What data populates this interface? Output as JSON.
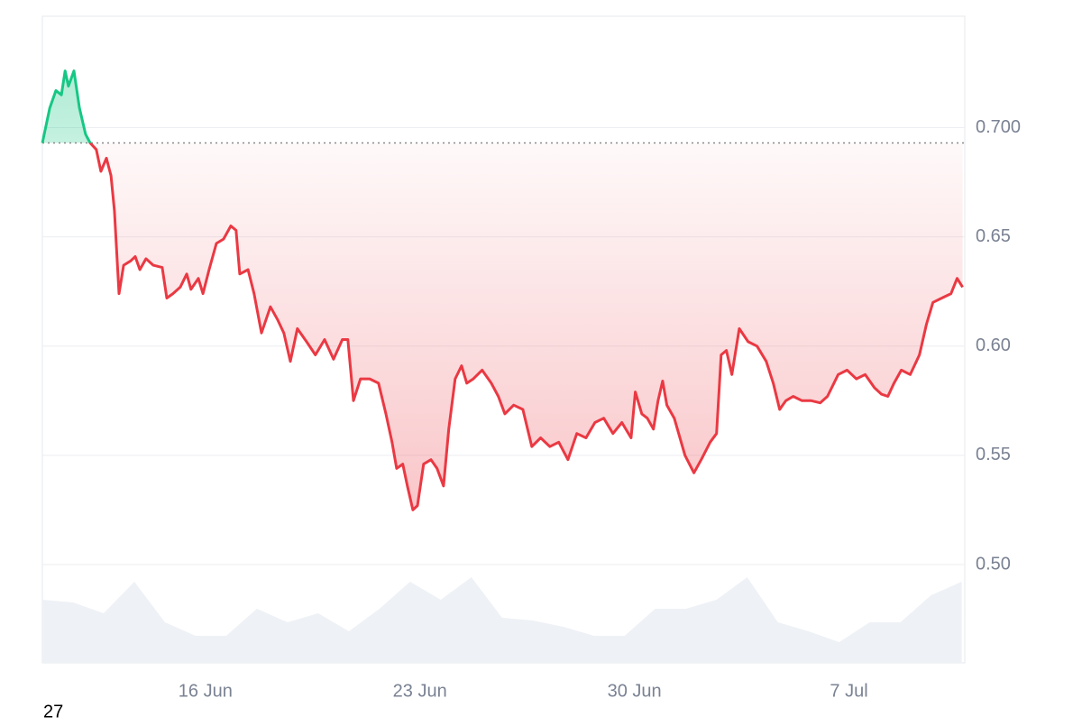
{
  "chart_data": {
    "type": "baseline-line",
    "x": [
      0,
      0.24,
      0.44,
      0.62,
      0.74,
      0.85,
      1.03,
      1.21,
      1.41,
      1.56,
      1.76,
      1.91,
      2.09,
      2.24,
      2.35,
      2.5,
      2.65,
      2.88,
      3.03,
      3.18,
      3.38,
      3.62,
      3.91,
      4.06,
      4.26,
      4.5,
      4.71,
      4.85,
      5.09,
      5.24,
      5.44,
      5.68,
      5.91,
      6.15,
      6.32,
      6.44,
      6.71,
      6.91,
      7.15,
      7.44,
      7.68,
      7.88,
      8.09,
      8.32,
      8.62,
      8.91,
      9.21,
      9.5,
      9.79,
      9.97,
      10.15,
      10.38,
      10.68,
      10.97,
      11.21,
      11.41,
      11.56,
      11.76,
      11.91,
      12.09,
      12.24,
      12.44,
      12.68,
      12.88,
      13.09,
      13.26,
      13.47,
      13.68,
      13.85,
      14.06,
      14.35,
      14.65,
      14.88,
      15.09,
      15.38,
      15.68,
      15.97,
      16.26,
      16.56,
      16.85,
      17.15,
      17.44,
      17.74,
      18.03,
      18.32,
      18.62,
      18.91,
      19.21,
      19.35,
      19.56,
      19.74,
      19.94,
      20.09,
      20.24,
      20.38,
      20.62,
      20.97,
      21.26,
      21.5,
      21.79,
      22,
      22.15,
      22.32,
      22.5,
      22.74,
      23.03,
      23.32,
      23.62,
      23.85,
      24.06,
      24.26,
      24.5,
      24.79,
      25.09,
      25.38,
      25.62,
      25.97,
      26.26,
      26.56,
      26.85,
      27.15,
      27.38,
      27.59,
      27.79,
      28.03,
      28.32,
      28.62,
      28.85,
      29.06,
      29.35,
      29.65,
      29.85,
      30.03
    ],
    "values": [
      0.693,
      0.709,
      0.717,
      0.715,
      0.726,
      0.719,
      0.726,
      0.709,
      0.697,
      0.693,
      0.69,
      0.68,
      0.686,
      0.678,
      0.662,
      0.624,
      0.637,
      0.639,
      0.641,
      0.635,
      0.64,
      0.637,
      0.636,
      0.622,
      0.624,
      0.627,
      0.633,
      0.626,
      0.631,
      0.624,
      0.635,
      0.647,
      0.649,
      0.655,
      0.653,
      0.633,
      0.635,
      0.624,
      0.606,
      0.618,
      0.612,
      0.606,
      0.593,
      0.608,
      0.602,
      0.596,
      0.603,
      0.594,
      0.603,
      0.603,
      0.575,
      0.585,
      0.585,
      0.583,
      0.569,
      0.556,
      0.544,
      0.546,
      0.536,
      0.525,
      0.527,
      0.546,
      0.548,
      0.544,
      0.536,
      0.562,
      0.585,
      0.591,
      0.583,
      0.585,
      0.589,
      0.583,
      0.577,
      0.569,
      0.573,
      0.571,
      0.554,
      0.558,
      0.554,
      0.556,
      0.548,
      0.56,
      0.558,
      0.565,
      0.567,
      0.56,
      0.565,
      0.558,
      0.579,
      0.569,
      0.567,
      0.562,
      0.575,
      0.584,
      0.573,
      0.567,
      0.55,
      0.542,
      0.548,
      0.556,
      0.56,
      0.596,
      0.598,
      0.587,
      0.608,
      0.602,
      0.6,
      0.593,
      0.583,
      0.571,
      0.575,
      0.577,
      0.575,
      0.575,
      0.574,
      0.577,
      0.587,
      0.589,
      0.585,
      0.587,
      0.581,
      0.578,
      0.577,
      0.583,
      0.589,
      0.587,
      0.596,
      0.61,
      0.62,
      0.622,
      0.624,
      0.631,
      0.627
    ],
    "baseline": 0.693,
    "up_color": "#16c784",
    "down_color": "#ea3943",
    "xlim": [
      0,
      30.1
    ],
    "xticks": [
      {
        "value": 5.32,
        "label": "16 Jun"
      },
      {
        "value": 12.32,
        "label": "23 Jun"
      },
      {
        "value": 19.32,
        "label": "30 Jun"
      },
      {
        "value": 26.32,
        "label": "7 Jul"
      }
    ],
    "ylim": [
      0.455,
      0.751
    ],
    "yticks": [
      {
        "value": 0.5,
        "label": "0.50"
      },
      0.55,
      {
        "value": 0.6,
        "label": "0.60"
      },
      0.65,
      {
        "value": 0.7,
        "label": "0.700"
      }
    ],
    "grid": true,
    "volume": {
      "x": [
        0,
        1,
        2,
        3,
        4,
        5,
        6,
        7,
        8,
        9,
        10,
        11,
        12,
        13,
        14,
        15,
        16,
        17,
        18,
        19,
        20,
        21,
        22,
        23,
        24,
        25,
        26,
        27,
        28,
        29,
        30
      ],
      "values": [
        70,
        67,
        55,
        90,
        45,
        30,
        30,
        60,
        45,
        55,
        35,
        60,
        90,
        70,
        95,
        50,
        47,
        40,
        30,
        30,
        60,
        60,
        70,
        95,
        45,
        35,
        23,
        45,
        45,
        75,
        90
      ],
      "ylim": [
        0,
        100
      ],
      "color": "#eef1f5"
    },
    "note": "27"
  }
}
